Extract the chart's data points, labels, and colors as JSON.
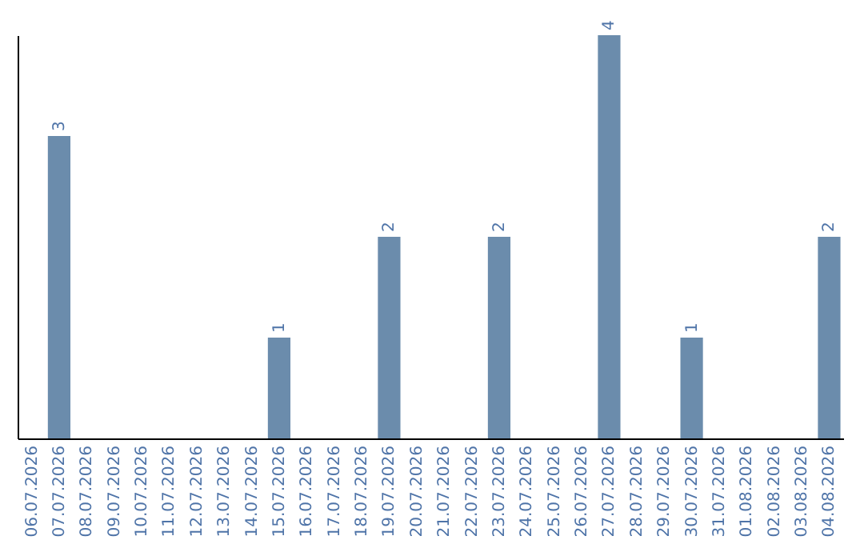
{
  "chart_data": {
    "type": "bar",
    "categories": [
      "06.07.2026",
      "07.07.2026",
      "08.07.2026",
      "09.07.2026",
      "10.07.2026",
      "11.07.2026",
      "12.07.2026",
      "13.07.2026",
      "14.07.2026",
      "15.07.2026",
      "16.07.2026",
      "17.07.2026",
      "18.07.2026",
      "19.07.2026",
      "20.07.2026",
      "21.07.2026",
      "22.07.2026",
      "23.07.2026",
      "24.07.2026",
      "25.07.2026",
      "26.07.2026",
      "27.07.2026",
      "28.07.2026",
      "29.07.2026",
      "30.07.2026",
      "31.07.2026",
      "01.08.2026",
      "02.08.2026",
      "03.08.2026",
      "04.08.2026"
    ],
    "values": [
      0,
      3,
      0,
      0,
      0,
      0,
      0,
      0,
      0,
      1,
      0,
      0,
      0,
      2,
      0,
      0,
      0,
      2,
      0,
      0,
      0,
      4,
      0,
      0,
      1,
      0,
      0,
      0,
      0,
      2
    ],
    "value_labels": [
      null,
      "3",
      null,
      null,
      null,
      null,
      null,
      null,
      null,
      "1",
      null,
      null,
      null,
      "2",
      null,
      null,
      null,
      "2",
      null,
      null,
      null,
      "4",
      null,
      null,
      "1",
      null,
      null,
      null,
      null,
      "2"
    ],
    "color": "#6b8cac",
    "tick_labels": "x",
    "grid": false
  }
}
